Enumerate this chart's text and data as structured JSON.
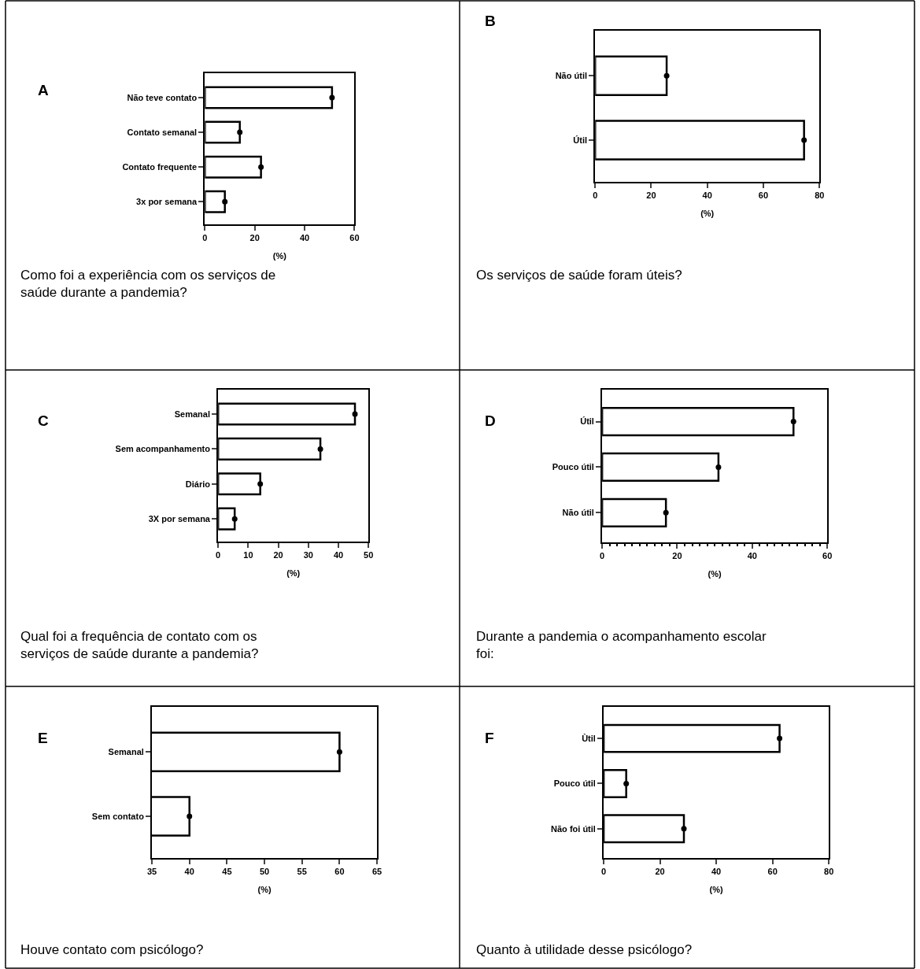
{
  "chart_data": [
    {
      "type": "bar",
      "orientation": "horizontal",
      "title": "A",
      "xlabel": "(%)",
      "categories": [
        "Não teve contato",
        "Contato semanal",
        "Contato frequente",
        "3x por semana"
      ],
      "marker": "circle",
      "xlim": [
        0,
        60
      ],
      "xticks": [
        0,
        20,
        40,
        60
      ],
      "series": [
        {
          "color": "#ffffff",
          "values": [
            51,
            14,
            22.5,
            8
          ]
        },
        {
          "type": "scatter",
          "color": "#000000",
          "values": [
            51,
            14,
            22.5,
            8
          ]
        }
      ],
      "annotations": [
        "Como foi a experiência com os serviços de saúde durante a pandemia?"
      ]
    },
    {
      "type": "bar",
      "orientation": "horizontal",
      "title": "B",
      "xlabel": "(%)",
      "categories": [
        "Não útil",
        "Útil"
      ],
      "marker": "circle",
      "xlim": [
        0,
        80
      ],
      "xticks": [
        0,
        20,
        40,
        60,
        80
      ],
      "series": [
        {
          "color": "#ffffff",
          "values": [
            25.5,
            74.5
          ]
        },
        {
          "type": "scatter",
          "color": "#000000",
          "values": [
            25.5,
            74.5
          ]
        }
      ],
      "annotations": [
        "Os serviços de saúde foram úteis?"
      ]
    },
    {
      "type": "bar",
      "orientation": "horizontal",
      "title": "C",
      "xlabel": "(%)",
      "categories": [
        "Semanal",
        "Sem acompanhamento",
        "Diário",
        "3X por semana"
      ],
      "marker": "circle",
      "xlim": [
        0,
        50
      ],
      "xticks": [
        0,
        10,
        20,
        30,
        40,
        50
      ],
      "series": [
        {
          "color": "#ffffff",
          "values": [
            45.5,
            34,
            14,
            5.5
          ]
        },
        {
          "type": "scatter",
          "color": "#000000",
          "values": [
            45.5,
            34,
            14,
            5.5
          ]
        }
      ],
      "annotations": [
        "Qual foi a frequência de contato com os serviços de saúde durante a pandemia?"
      ]
    },
    {
      "type": "bar",
      "orientation": "horizontal",
      "title": "D",
      "xlabel": "(%)",
      "categories": [
        "Útil",
        "Pouco útil",
        "Não útil"
      ],
      "marker": "circle",
      "xlim": [
        0,
        60
      ],
      "xticks": [
        0,
        {
          "value": 2,
          "label": null
        },
        {
          "value": 4,
          "label": null
        },
        {
          "value": 6,
          "label": null
        },
        {
          "value": 8,
          "label": null
        },
        {
          "value": 10,
          "label": null
        },
        {
          "value": 12,
          "label": null
        },
        {
          "value": 14,
          "label": null
        },
        {
          "value": 16,
          "label": null
        },
        {
          "value": 18,
          "label": null
        },
        20,
        {
          "value": 22,
          "label": null
        },
        {
          "value": 24,
          "label": null
        },
        {
          "value": 26,
          "label": null
        },
        {
          "value": 28,
          "label": null
        },
        {
          "value": 30,
          "label": null
        },
        {
          "value": 32,
          "label": null
        },
        {
          "value": 34,
          "label": null
        },
        {
          "value": 36,
          "label": null
        },
        {
          "value": 38,
          "label": null
        },
        40,
        {
          "value": 42,
          "label": null
        },
        {
          "value": 44,
          "label": null
        },
        {
          "value": 46,
          "label": null
        },
        {
          "value": 48,
          "label": null
        },
        {
          "value": 50,
          "label": null
        },
        {
          "value": 52,
          "label": null
        },
        {
          "value": 54,
          "label": null
        },
        {
          "value": 56,
          "label": null
        },
        {
          "value": 58,
          "label": null
        },
        60
      ],
      "series": [
        {
          "color": "#ffffff",
          "values": [
            51,
            31,
            17
          ]
        },
        {
          "type": "scatter",
          "color": "#000000",
          "values": [
            51,
            31,
            17
          ]
        }
      ],
      "annotations": [
        "Durante a pandemia o acompanhamento escolar foi:"
      ]
    },
    {
      "type": "bar",
      "orientation": "horizontal",
      "title": "E",
      "xlabel": "(%)",
      "categories": [
        "Semanal",
        "Sem contato"
      ],
      "marker": "circle",
      "xlim": [
        35,
        65
      ],
      "xticks": [
        35,
        40,
        45,
        50,
        55,
        60,
        65
      ],
      "series": [
        {
          "color": "#ffffff",
          "values": [
            60,
            40
          ]
        },
        {
          "type": "scatter",
          "color": "#000000",
          "values": [
            60,
            40
          ]
        }
      ],
      "annotations": [
        "Houve contato com psicólogo?"
      ]
    },
    {
      "type": "bar",
      "orientation": "horizontal",
      "title": "F",
      "xlabel": "(%)",
      "categories": [
        "Ùtil",
        "Pouco útil",
        "Não foi útil"
      ],
      "marker": "circle",
      "xlim": [
        0,
        80
      ],
      "xticks": [
        0,
        20,
        40,
        60,
        80
      ],
      "series": [
        {
          "color": "#ffffff",
          "values": [
            62.5,
            8,
            28.5
          ]
        },
        {
          "type": "scatter",
          "color": "#000000",
          "values": [
            62.5,
            8,
            28.5
          ]
        }
      ],
      "annotations": [
        "Quanto à utilidade desse psicólogo?"
      ]
    }
  ]
}
